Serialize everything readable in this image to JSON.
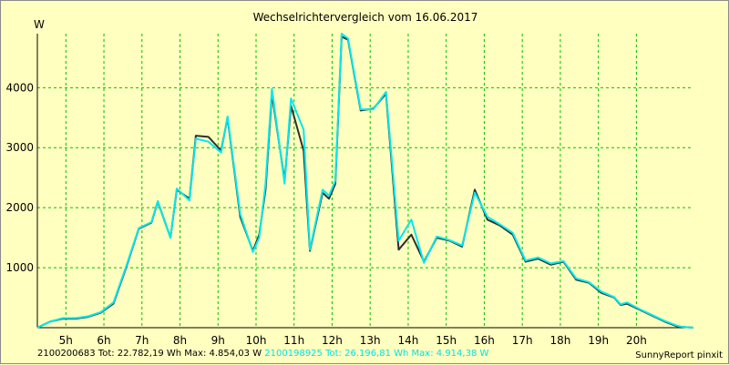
{
  "chart_data": {
    "type": "line",
    "title": "Wechselrichtervergleich vom 16.06.2017",
    "ylabel": "W",
    "xlabel": "",
    "x_range_hours": [
      4.25,
      21.5
    ],
    "ylim": [
      0,
      4900
    ],
    "x_ticks": [
      {
        "h": 5,
        "label": "5h"
      },
      {
        "h": 6,
        "label": "6h"
      },
      {
        "h": 7,
        "label": "7h"
      },
      {
        "h": 8,
        "label": "8h"
      },
      {
        "h": 9,
        "label": "9h"
      },
      {
        "h": 10,
        "label": "10h"
      },
      {
        "h": 11,
        "label": "11h"
      },
      {
        "h": 12,
        "label": "12h"
      },
      {
        "h": 13,
        "label": "13h"
      },
      {
        "h": 14,
        "label": "14h"
      },
      {
        "h": 15,
        "label": "15h"
      },
      {
        "h": 16,
        "label": "16h"
      },
      {
        "h": 17,
        "label": "17h"
      },
      {
        "h": 18,
        "label": "18h"
      },
      {
        "h": 19,
        "label": "19h"
      },
      {
        "h": 20,
        "label": "20h"
      }
    ],
    "y_ticks": [
      1000,
      2000,
      3000,
      4000
    ],
    "grid": true,
    "colors": {
      "series1": "#303030",
      "series2": "#00e8f0",
      "grid": "#00c000",
      "background": "#ffffc0"
    },
    "series": [
      {
        "name": "2100200683",
        "summary": "2100200683 Tot: 22.782,19 Wh Max: 4.854,03 W",
        "x": [
          "4:15",
          "4:35",
          "4:55",
          "5:15",
          "5:35",
          "5:55",
          "6:15",
          "6:35",
          "6:55",
          "7:15",
          "7:25",
          "7:45",
          "7:55",
          "8:15",
          "8:25",
          "8:45",
          "9:05",
          "9:15",
          "9:35",
          "9:55",
          "10:05",
          "10:15",
          "10:25",
          "10:45",
          "10:55",
          "11:15",
          "11:25",
          "11:45",
          "11:55",
          "12:05",
          "12:15",
          "12:25",
          "12:45",
          "13:05",
          "13:25",
          "13:45",
          "14:05",
          "14:25",
          "14:45",
          "15:05",
          "15:25",
          "15:45",
          "16:05",
          "16:25",
          "16:45",
          "17:05",
          "17:25",
          "17:45",
          "18:05",
          "18:25",
          "18:45",
          "19:05",
          "19:25",
          "19:35",
          "19:45",
          "20:05",
          "20:25",
          "20:45",
          "21:05",
          "21:15",
          "21:30"
        ],
        "y": [
          0,
          100,
          150,
          150,
          180,
          250,
          400,
          1000,
          1650,
          1750,
          2100,
          1500,
          2300,
          2150,
          3200,
          3180,
          2950,
          3500,
          1850,
          1280,
          1550,
          2300,
          3900,
          2450,
          3700,
          2950,
          1280,
          2250,
          2150,
          2400,
          4850,
          4800,
          3620,
          3650,
          3900,
          1300,
          1550,
          1100,
          1500,
          1450,
          1350,
          2300,
          1800,
          1700,
          1550,
          1100,
          1150,
          1050,
          1100,
          800,
          750,
          580,
          500,
          380,
          400,
          300,
          200,
          100,
          20,
          10,
          0
        ]
      },
      {
        "name": "2100198925",
        "summary": "2100198925 Tot: 26.196,81 Wh Max: 4.914,38 W",
        "x": [
          "4:15",
          "4:35",
          "4:55",
          "5:15",
          "5:35",
          "5:55",
          "6:15",
          "6:35",
          "6:55",
          "7:15",
          "7:25",
          "7:45",
          "7:55",
          "8:15",
          "8:25",
          "8:45",
          "9:05",
          "9:15",
          "9:35",
          "9:55",
          "10:05",
          "10:15",
          "10:25",
          "10:45",
          "10:55",
          "11:15",
          "11:25",
          "11:45",
          "11:55",
          "12:05",
          "12:15",
          "12:25",
          "12:45",
          "13:05",
          "13:25",
          "13:45",
          "14:05",
          "14:25",
          "14:45",
          "15:05",
          "15:25",
          "15:45",
          "16:05",
          "16:25",
          "16:45",
          "17:05",
          "17:25",
          "17:45",
          "18:05",
          "18:25",
          "18:45",
          "19:05",
          "19:25",
          "19:35",
          "19:45",
          "20:05",
          "20:25",
          "20:45",
          "21:05",
          "21:15",
          "21:30"
        ],
        "y": [
          0,
          100,
          160,
          160,
          190,
          260,
          420,
          1020,
          1660,
          1760,
          2110,
          1500,
          2320,
          2120,
          3150,
          3100,
          2920,
          3520,
          1900,
          1260,
          1500,
          2400,
          3980,
          2400,
          3820,
          3300,
          1300,
          2300,
          2200,
          2450,
          4900,
          4820,
          3640,
          3640,
          3930,
          1450,
          1800,
          1080,
          1520,
          1460,
          1370,
          2250,
          1850,
          1720,
          1580,
          1120,
          1170,
          1070,
          1110,
          820,
          760,
          600,
          510,
          390,
          420,
          310,
          210,
          110,
          30,
          10,
          0
        ]
      }
    ]
  },
  "brand": "SunnyReport pinxit"
}
